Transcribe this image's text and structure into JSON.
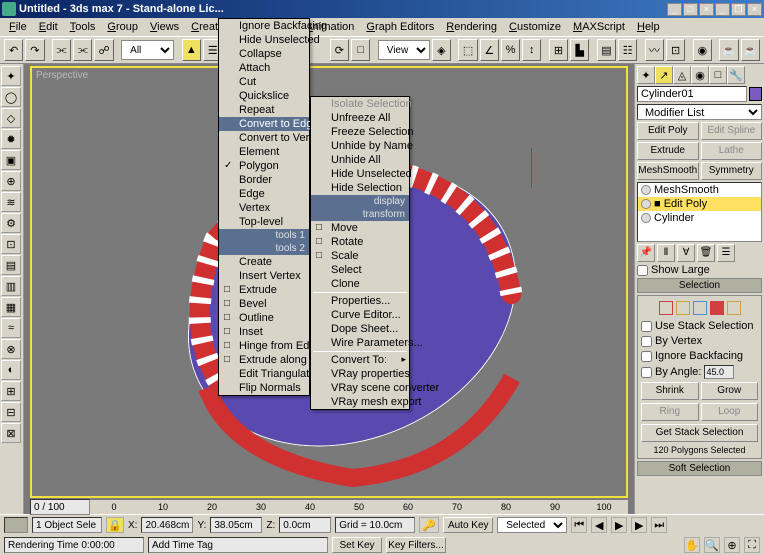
{
  "title": "Untitled - 3ds max 7 - Stand-alone Lic...",
  "menus": [
    "File",
    "Edit",
    "Tools",
    "Group",
    "Views",
    "Create",
    "Modifie",
    "or",
    "Animation",
    "Graph Editors",
    "Rendering",
    "Customize",
    "MAXScript",
    "Help"
  ],
  "toolbar": {
    "dropdown1": "All",
    "dropdown2": "View"
  },
  "viewport": {
    "label": "Perspective"
  },
  "timeline": {
    "pos": "0 / 100",
    "marks": [
      0,
      10,
      20,
      30,
      40,
      50,
      60,
      70,
      80,
      90,
      100
    ]
  },
  "ctx1": {
    "items": [
      "Ignore Backfacing",
      "Hide Unselected",
      "Collapse",
      "Attach",
      "Cut",
      "Quickslice",
      "Repeat",
      "Convert to Edge",
      "Convert to Vertex",
      "Element",
      "Polygon",
      "Border",
      "Edge",
      "Vertex",
      "Top-level"
    ],
    "highlighted": "Convert to Edge",
    "checked": "Polygon",
    "hdr_tools1": "tools 1",
    "hdr_tools2": "tools 2",
    "items2": [
      "Create",
      "Insert Vertex",
      "Extrude",
      "Bevel",
      "Outline",
      "Inset",
      "Hinge from Edge",
      "Extrude along Spline",
      "Edit Triangulation",
      "Flip Normals"
    ],
    "boxed": [
      "Extrude",
      "Bevel",
      "Outline",
      "Inset",
      "Hinge from Edge",
      "Extrude along Spline"
    ]
  },
  "ctx2": {
    "items1": [
      "Isolate Selection",
      "Unfreeze All",
      "Freeze Selection",
      "Unhide by Name",
      "Unhide All",
      "Hide Unselected",
      "Hide Selection"
    ],
    "hdr_display": "display",
    "hdr_transform": "transform",
    "items2": [
      "Move",
      "Rotate",
      "Scale",
      "Select",
      "Clone",
      "Properties...",
      "Curve Editor...",
      "Dope Sheet...",
      "Wire Parameters...",
      "Convert To:",
      "VRay properties",
      "VRay scene converter",
      "VRay mesh export"
    ],
    "boxed2": [
      "Move",
      "Rotate",
      "Scale"
    ]
  },
  "rpanel": {
    "objname": "Cylinder01",
    "modlist_label": "Modifier List",
    "btns": {
      "editpoly": "Edit Poly",
      "editspline": "Edit Spline",
      "extrude": "Extrude",
      "lathe": "Lathe",
      "meshsmooth": "MeshSmooth",
      "symmetry": "Symmetry"
    },
    "stack": [
      {
        "label": "MeshSmooth",
        "sel": false
      },
      {
        "label": "Edit Poly",
        "sel": true
      },
      {
        "label": "Cylinder",
        "sel": false
      }
    ],
    "showlarge": "Show Large",
    "rollout_sel": "Selection",
    "use_stack": "Use Stack Selection",
    "by_vertex": "By Vertex",
    "ignore_bf": "Ignore Backfacing",
    "by_angle": "By Angle:",
    "angle_val": "45.0",
    "shrink": "Shrink",
    "grow": "Grow",
    "ring": "Ring",
    "loop": "Loop",
    "get_stack": "Get Stack Selection",
    "polycount": "120 Polygons Selected",
    "rollout_soft": "Soft Selection",
    "sel_colors": [
      "#d04040",
      "#d0a040",
      "#5090d0",
      "#d04040",
      "#d0a040"
    ]
  },
  "status": {
    "objsel": "1 Object Sele",
    "x": "20.468cm",
    "y": "38.05cm",
    "z": "0.0cm",
    "grid": "Grid = 10.0cm",
    "autokey": "Auto Key",
    "setkey": "Set Key",
    "selected": "Selected",
    "keyfilters": "Key Filters...",
    "rendertime": "Rendering Time 0:00:00",
    "addtimetag": "Add Time Tag"
  },
  "colors": {
    "viewport_bg": "#7a7a7a",
    "viewport_border": "#f0e040",
    "obj_face": "#5a4ab0",
    "obj_rim": "#d03030",
    "obj_white": "#f0f0f8"
  }
}
